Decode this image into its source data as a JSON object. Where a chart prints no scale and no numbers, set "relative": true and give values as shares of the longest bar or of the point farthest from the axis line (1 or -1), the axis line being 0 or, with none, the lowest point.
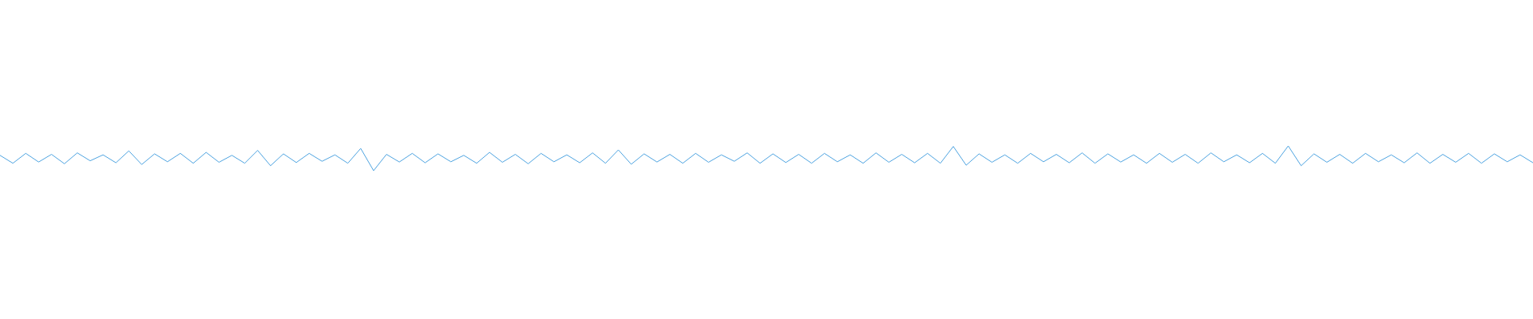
{
  "chart_data": {
    "type": "line",
    "relative": true,
    "marker": "none",
    "categories": [
      null,
      null,
      null,
      null,
      null,
      null,
      null,
      null,
      null,
      null,
      null,
      null,
      null,
      null,
      null,
      null,
      null,
      null,
      null,
      null,
      null,
      null,
      null,
      null,
      null,
      null,
      null,
      null,
      null,
      null,
      null,
      null,
      null,
      null,
      null,
      null,
      null,
      null,
      null,
      null,
      null,
      null,
      null,
      null,
      null,
      null,
      null,
      null,
      null,
      null,
      null,
      null,
      null,
      null,
      null,
      null,
      null,
      null,
      null,
      null,
      null,
      null,
      null,
      null,
      null,
      null,
      null,
      null,
      null,
      null,
      null,
      null,
      null,
      null,
      null,
      null,
      null,
      null,
      null,
      null,
      null,
      null,
      null,
      null,
      null,
      null,
      null,
      null,
      null,
      null,
      null,
      null,
      null,
      null,
      null,
      null,
      null,
      null,
      null,
      null,
      null,
      null,
      null,
      null,
      null,
      null,
      null,
      null,
      null,
      null,
      null,
      null,
      null,
      null,
      null,
      null,
      null,
      null,
      null,
      null
    ],
    "series": [
      {
        "color": "#4da3e0",
        "values": [
          0.62,
          0.3,
          0.7,
          0.35,
          0.66,
          0.28,
          0.72,
          0.4,
          0.64,
          0.32,
          0.8,
          0.25,
          0.68,
          0.36,
          0.7,
          0.3,
          0.74,
          0.34,
          0.62,
          0.3,
          0.82,
          0.2,
          0.68,
          0.33,
          0.7,
          0.38,
          0.64,
          0.3,
          0.9,
          0,
          0.66,
          0.35,
          0.7,
          0.32,
          0.68,
          0.36,
          0.62,
          0.3,
          0.74,
          0.34,
          0.66,
          0.28,
          0.7,
          0.36,
          0.64,
          0.32,
          0.72,
          0.3,
          0.84,
          0.26,
          0.68,
          0.35,
          0.66,
          0.3,
          0.7,
          0.34,
          0.64,
          0.38,
          0.72,
          0.3,
          0.68,
          0.33,
          0.66,
          0.3,
          0.7,
          0.36,
          0.64,
          0.3,
          0.72,
          0.34,
          0.66,
          0.32,
          0.7,
          0.3,
          0.98,
          0.22,
          0.68,
          0.34,
          0.64,
          0.3,
          0.7,
          0.36,
          0.66,
          0.32,
          0.72,
          0.3,
          0.68,
          0.35,
          0.64,
          0.3,
          0.7,
          0.34,
          0.66,
          0.3,
          0.72,
          0.36,
          0.64,
          0.32,
          0.7,
          0.3,
          1.0,
          0.2,
          0.68,
          0.34,
          0.66,
          0.3,
          0.7,
          0.36,
          0.64,
          0.32,
          0.72,
          0.3,
          0.66,
          0.34,
          0.7,
          0.3,
          0.68,
          0.36,
          0.64,
          0.32
        ]
      }
    ]
  }
}
